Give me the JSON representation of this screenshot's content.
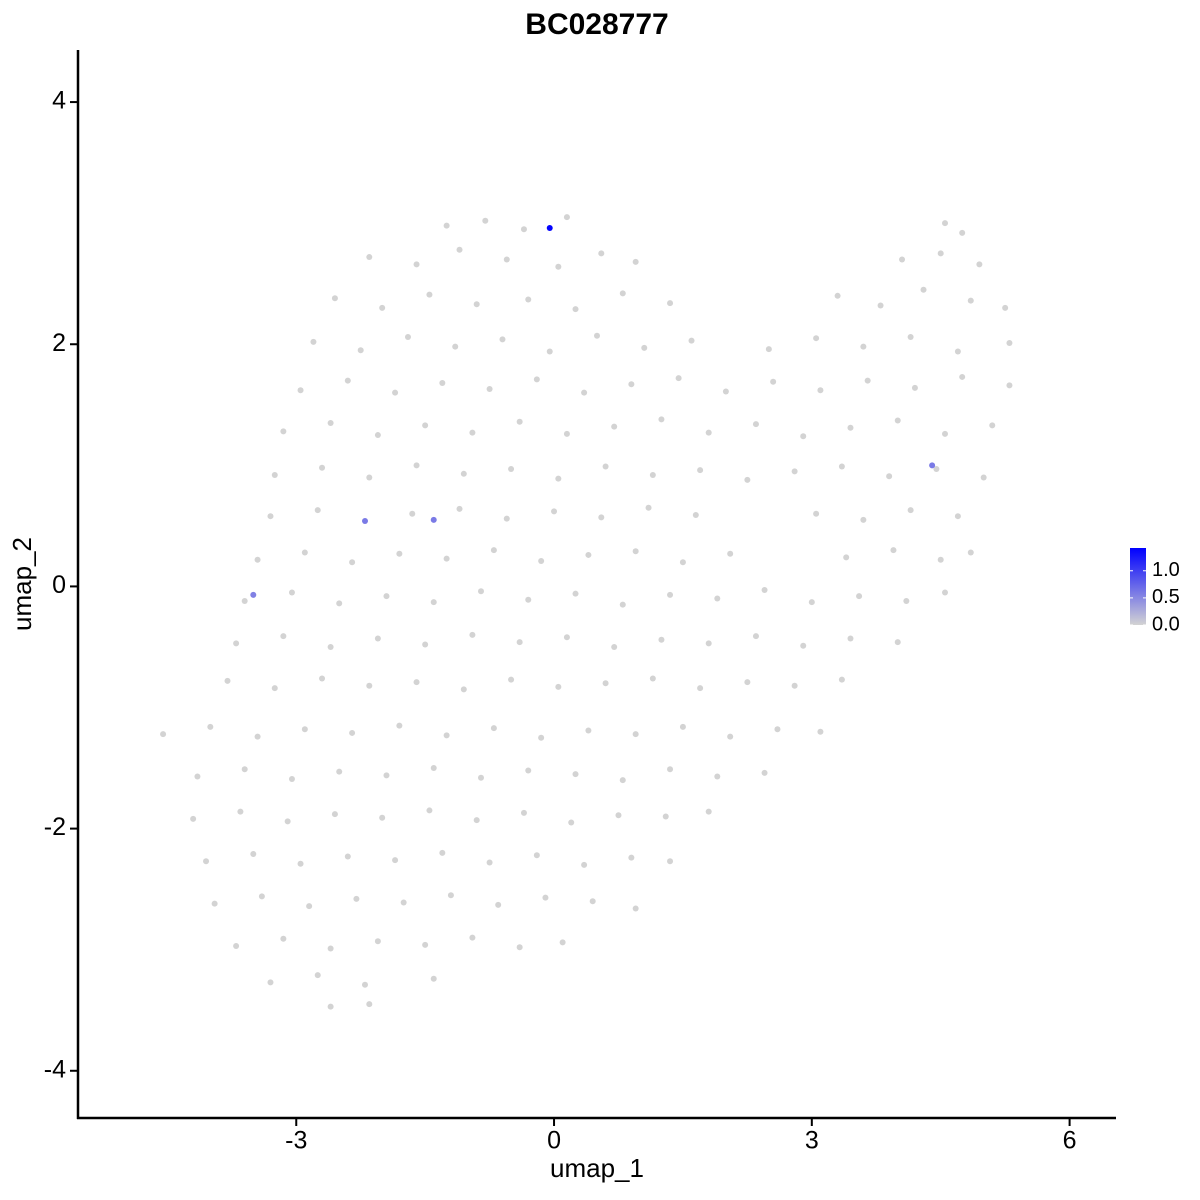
{
  "chart_data": {
    "type": "scatter",
    "title": "BC028777",
    "x_label": "umap_1",
    "y_label": "umap_2",
    "xlim": [
      -5.54,
      6.54
    ],
    "ylim": [
      -4.39,
      4.43
    ],
    "xticks": [
      -3,
      0,
      3,
      6
    ],
    "yticks": [
      -4,
      -2,
      0,
      2,
      4
    ],
    "low_color": "#d3d3d3",
    "high_color": "#0000ff",
    "colorbar_lim": [
      0,
      1.42
    ],
    "colorbar_ticks": [
      {
        "value": 0,
        "label": "0.0"
      },
      {
        "value": 0.5,
        "label": "0.5"
      },
      {
        "value": 1,
        "label": "1.0"
      }
    ],
    "points": [
      [
        -1.25,
        2.98,
        0
      ],
      [
        -0.8,
        3.02,
        0
      ],
      [
        -0.35,
        2.95,
        0
      ],
      [
        0.15,
        3.05,
        0
      ],
      [
        4.55,
        3.0,
        0
      ],
      [
        4.75,
        2.92,
        0
      ],
      [
        -2.15,
        2.72,
        0
      ],
      [
        -1.6,
        2.66,
        0
      ],
      [
        -1.1,
        2.78,
        0
      ],
      [
        -0.55,
        2.7,
        0
      ],
      [
        0.05,
        2.64,
        0
      ],
      [
        0.55,
        2.75,
        0
      ],
      [
        0.95,
        2.68,
        0
      ],
      [
        4.05,
        2.7,
        0
      ],
      [
        4.5,
        2.75,
        0
      ],
      [
        4.95,
        2.66,
        0
      ],
      [
        -2.55,
        2.38,
        0
      ],
      [
        -2.0,
        2.3,
        0
      ],
      [
        -1.45,
        2.41,
        0
      ],
      [
        -0.9,
        2.33,
        0
      ],
      [
        -0.3,
        2.37,
        0
      ],
      [
        0.25,
        2.29,
        0
      ],
      [
        0.8,
        2.42,
        0
      ],
      [
        1.35,
        2.34,
        0
      ],
      [
        3.3,
        2.4,
        0
      ],
      [
        3.8,
        2.32,
        0
      ],
      [
        4.3,
        2.45,
        0
      ],
      [
        4.85,
        2.36,
        0
      ],
      [
        5.25,
        2.3,
        0
      ],
      [
        -2.8,
        2.02,
        0
      ],
      [
        -2.25,
        1.95,
        0
      ],
      [
        -1.7,
        2.06,
        0
      ],
      [
        -1.15,
        1.98,
        0
      ],
      [
        -0.6,
        2.04,
        0
      ],
      [
        -0.05,
        1.94,
        0
      ],
      [
        0.5,
        2.07,
        0
      ],
      [
        1.05,
        1.97,
        0
      ],
      [
        1.6,
        2.03,
        0
      ],
      [
        2.5,
        1.96,
        0
      ],
      [
        3.05,
        2.05,
        0
      ],
      [
        3.6,
        1.98,
        0
      ],
      [
        4.15,
        2.06,
        0
      ],
      [
        4.7,
        1.94,
        0
      ],
      [
        5.3,
        2.01,
        0
      ],
      [
        -2.95,
        1.62,
        0
      ],
      [
        -2.4,
        1.7,
        0
      ],
      [
        -1.85,
        1.6,
        0
      ],
      [
        -1.3,
        1.68,
        0
      ],
      [
        -0.75,
        1.63,
        0
      ],
      [
        -0.2,
        1.71,
        0
      ],
      [
        0.35,
        1.6,
        0
      ],
      [
        0.9,
        1.67,
        0
      ],
      [
        1.45,
        1.72,
        0
      ],
      [
        2.0,
        1.61,
        0
      ],
      [
        2.55,
        1.69,
        0
      ],
      [
        3.1,
        1.62,
        0
      ],
      [
        3.65,
        1.7,
        0
      ],
      [
        4.2,
        1.64,
        0
      ],
      [
        4.75,
        1.73,
        0
      ],
      [
        5.3,
        1.66,
        0
      ],
      [
        -3.15,
        1.28,
        0
      ],
      [
        -2.6,
        1.35,
        0
      ],
      [
        -2.05,
        1.25,
        0
      ],
      [
        -1.5,
        1.33,
        0
      ],
      [
        -0.95,
        1.27,
        0
      ],
      [
        -0.4,
        1.36,
        0
      ],
      [
        0.15,
        1.26,
        0
      ],
      [
        0.7,
        1.32,
        0
      ],
      [
        1.25,
        1.38,
        0
      ],
      [
        1.8,
        1.27,
        0
      ],
      [
        2.35,
        1.34,
        0
      ],
      [
        2.9,
        1.24,
        0
      ],
      [
        3.45,
        1.31,
        0
      ],
      [
        4.0,
        1.37,
        0
      ],
      [
        4.55,
        1.26,
        0
      ],
      [
        5.1,
        1.33,
        0
      ],
      [
        -3.25,
        0.92,
        0
      ],
      [
        -2.7,
        0.98,
        0
      ],
      [
        -2.15,
        0.9,
        0
      ],
      [
        -1.6,
        1.0,
        0
      ],
      [
        -1.05,
        0.93,
        0
      ],
      [
        -0.5,
        0.97,
        0
      ],
      [
        0.05,
        0.89,
        0
      ],
      [
        0.6,
        0.99,
        0
      ],
      [
        1.15,
        0.92,
        0
      ],
      [
        1.7,
        0.96,
        0
      ],
      [
        2.25,
        0.88,
        0
      ],
      [
        2.8,
        0.95,
        0
      ],
      [
        3.35,
        0.99,
        0
      ],
      [
        3.9,
        0.91,
        0
      ],
      [
        4.45,
        0.97,
        0
      ],
      [
        5.0,
        0.9,
        0
      ],
      [
        -3.3,
        0.58,
        0
      ],
      [
        -2.75,
        0.63,
        0
      ],
      [
        -1.65,
        0.6,
        0
      ],
      [
        -1.1,
        0.64,
        0
      ],
      [
        -0.55,
        0.56,
        0
      ],
      [
        0.0,
        0.62,
        0
      ],
      [
        0.55,
        0.57,
        0
      ],
      [
        1.1,
        0.65,
        0
      ],
      [
        1.65,
        0.59,
        0
      ],
      [
        3.05,
        0.6,
        0
      ],
      [
        3.6,
        0.55,
        0
      ],
      [
        4.15,
        0.63,
        0
      ],
      [
        4.7,
        0.58,
        0
      ],
      [
        -3.45,
        0.22,
        0
      ],
      [
        -2.9,
        0.28,
        0
      ],
      [
        -2.35,
        0.2,
        0
      ],
      [
        -1.8,
        0.27,
        0
      ],
      [
        -1.25,
        0.23,
        0
      ],
      [
        -0.7,
        0.3,
        0
      ],
      [
        -0.15,
        0.21,
        0
      ],
      [
        0.4,
        0.26,
        0
      ],
      [
        0.95,
        0.29,
        0
      ],
      [
        1.5,
        0.2,
        0
      ],
      [
        2.05,
        0.27,
        0
      ],
      [
        3.4,
        0.24,
        0
      ],
      [
        3.95,
        0.3,
        0
      ],
      [
        4.5,
        0.22,
        0
      ],
      [
        4.85,
        0.28,
        0
      ],
      [
        -3.6,
        -0.12,
        0
      ],
      [
        -3.05,
        -0.05,
        0
      ],
      [
        -2.5,
        -0.14,
        0
      ],
      [
        -1.95,
        -0.08,
        0
      ],
      [
        -1.4,
        -0.13,
        0
      ],
      [
        -0.85,
        -0.04,
        0
      ],
      [
        -0.3,
        -0.11,
        0
      ],
      [
        0.25,
        -0.06,
        0
      ],
      [
        0.8,
        -0.15,
        0
      ],
      [
        1.35,
        -0.07,
        0
      ],
      [
        1.9,
        -0.1,
        0
      ],
      [
        2.45,
        -0.03,
        0
      ],
      [
        3.0,
        -0.13,
        0
      ],
      [
        3.55,
        -0.08,
        0
      ],
      [
        4.1,
        -0.12,
        0
      ],
      [
        4.55,
        -0.05,
        0
      ],
      [
        -3.7,
        -0.47,
        0
      ],
      [
        -3.15,
        -0.41,
        0
      ],
      [
        -2.6,
        -0.5,
        0
      ],
      [
        -2.05,
        -0.43,
        0
      ],
      [
        -1.5,
        -0.48,
        0
      ],
      [
        -0.95,
        -0.4,
        0
      ],
      [
        -0.4,
        -0.46,
        0
      ],
      [
        0.15,
        -0.42,
        0
      ],
      [
        0.7,
        -0.5,
        0
      ],
      [
        1.25,
        -0.44,
        0
      ],
      [
        1.8,
        -0.47,
        0
      ],
      [
        2.35,
        -0.41,
        0
      ],
      [
        2.9,
        -0.49,
        0
      ],
      [
        3.45,
        -0.43,
        0
      ],
      [
        4.0,
        -0.46,
        0
      ],
      [
        -3.8,
        -0.78,
        0
      ],
      [
        -3.25,
        -0.84,
        0
      ],
      [
        -2.7,
        -0.76,
        0
      ],
      [
        -2.15,
        -0.82,
        0
      ],
      [
        -1.6,
        -0.79,
        0
      ],
      [
        -1.05,
        -0.85,
        0
      ],
      [
        -0.5,
        -0.77,
        0
      ],
      [
        0.05,
        -0.83,
        0
      ],
      [
        0.6,
        -0.8,
        0
      ],
      [
        1.15,
        -0.76,
        0
      ],
      [
        1.7,
        -0.84,
        0
      ],
      [
        2.25,
        -0.79,
        0
      ],
      [
        2.8,
        -0.82,
        0
      ],
      [
        3.35,
        -0.77,
        0
      ],
      [
        -4.55,
        -1.22,
        0
      ],
      [
        -4.0,
        -1.16,
        0
      ],
      [
        -3.45,
        -1.24,
        0
      ],
      [
        -2.9,
        -1.18,
        0
      ],
      [
        -2.35,
        -1.21,
        0
      ],
      [
        -1.8,
        -1.15,
        0
      ],
      [
        -1.25,
        -1.23,
        0
      ],
      [
        -0.7,
        -1.17,
        0
      ],
      [
        -0.15,
        -1.25,
        0
      ],
      [
        0.4,
        -1.19,
        0
      ],
      [
        0.95,
        -1.22,
        0
      ],
      [
        1.5,
        -1.16,
        0
      ],
      [
        2.05,
        -1.24,
        0
      ],
      [
        2.6,
        -1.18,
        0
      ],
      [
        3.1,
        -1.2,
        0
      ],
      [
        -4.15,
        -1.57,
        0
      ],
      [
        -3.6,
        -1.51,
        0
      ],
      [
        -3.05,
        -1.59,
        0
      ],
      [
        -2.5,
        -1.53,
        0
      ],
      [
        -1.95,
        -1.56,
        0
      ],
      [
        -1.4,
        -1.5,
        0
      ],
      [
        -0.85,
        -1.58,
        0
      ],
      [
        -0.3,
        -1.52,
        0
      ],
      [
        0.25,
        -1.55,
        0
      ],
      [
        0.8,
        -1.6,
        0
      ],
      [
        1.35,
        -1.51,
        0
      ],
      [
        1.9,
        -1.57,
        0
      ],
      [
        2.45,
        -1.54,
        0
      ],
      [
        -4.2,
        -1.92,
        0
      ],
      [
        -3.65,
        -1.86,
        0
      ],
      [
        -3.1,
        -1.94,
        0
      ],
      [
        -2.55,
        -1.88,
        0
      ],
      [
        -2.0,
        -1.91,
        0
      ],
      [
        -1.45,
        -1.85,
        0
      ],
      [
        -0.9,
        -1.93,
        0
      ],
      [
        -0.35,
        -1.87,
        0
      ],
      [
        0.2,
        -1.95,
        0
      ],
      [
        0.75,
        -1.89,
        0
      ],
      [
        1.3,
        -1.9,
        0
      ],
      [
        1.8,
        -1.86,
        0
      ],
      [
        -4.05,
        -2.27,
        0
      ],
      [
        -3.5,
        -2.21,
        0
      ],
      [
        -2.95,
        -2.29,
        0
      ],
      [
        -2.4,
        -2.23,
        0
      ],
      [
        -1.85,
        -2.26,
        0
      ],
      [
        -1.3,
        -2.2,
        0
      ],
      [
        -0.75,
        -2.28,
        0
      ],
      [
        -0.2,
        -2.22,
        0
      ],
      [
        0.35,
        -2.3,
        0
      ],
      [
        0.9,
        -2.24,
        0
      ],
      [
        1.35,
        -2.27,
        0
      ],
      [
        -3.95,
        -2.62,
        0
      ],
      [
        -3.4,
        -2.56,
        0
      ],
      [
        -2.85,
        -2.64,
        0
      ],
      [
        -2.3,
        -2.58,
        0
      ],
      [
        -1.75,
        -2.61,
        0
      ],
      [
        -1.2,
        -2.55,
        0
      ],
      [
        -0.65,
        -2.63,
        0
      ],
      [
        -0.1,
        -2.57,
        0
      ],
      [
        0.45,
        -2.6,
        0
      ],
      [
        0.95,
        -2.66,
        0
      ],
      [
        -3.7,
        -2.97,
        0
      ],
      [
        -3.15,
        -2.91,
        0
      ],
      [
        -2.6,
        -2.99,
        0
      ],
      [
        -2.05,
        -2.93,
        0
      ],
      [
        -1.5,
        -2.96,
        0
      ],
      [
        -0.95,
        -2.9,
        0
      ],
      [
        -0.4,
        -2.98,
        0
      ],
      [
        0.1,
        -2.94,
        0
      ],
      [
        -3.3,
        -3.27,
        0
      ],
      [
        -2.75,
        -3.21,
        0
      ],
      [
        -2.2,
        -3.29,
        0
      ],
      [
        -1.4,
        -3.24,
        0
      ],
      [
        -2.6,
        -3.47,
        0
      ],
      [
        -2.15,
        -3.45,
        0
      ],
      [
        -2.2,
        0.54,
        0.6
      ],
      [
        -1.4,
        0.55,
        0.6
      ],
      [
        4.4,
        1.0,
        0.6
      ],
      [
        -3.5,
        -0.07,
        0.55
      ],
      [
        -0.05,
        2.96,
        1.4
      ]
    ]
  }
}
